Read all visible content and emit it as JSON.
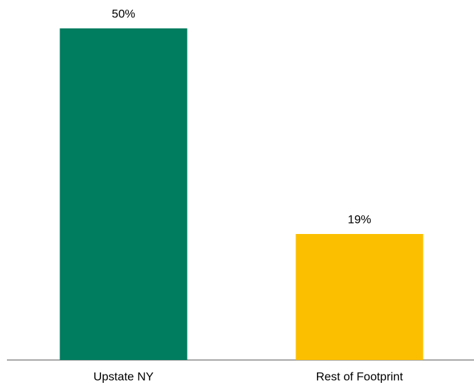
{
  "chart_data": {
    "type": "bar",
    "categories": [
      "Upstate NY",
      "Rest of Footprint"
    ],
    "values": [
      50,
      19
    ],
    "value_labels": [
      "50%",
      "19%"
    ],
    "colors": [
      "#007c5f",
      "#fcbf00"
    ]
  }
}
